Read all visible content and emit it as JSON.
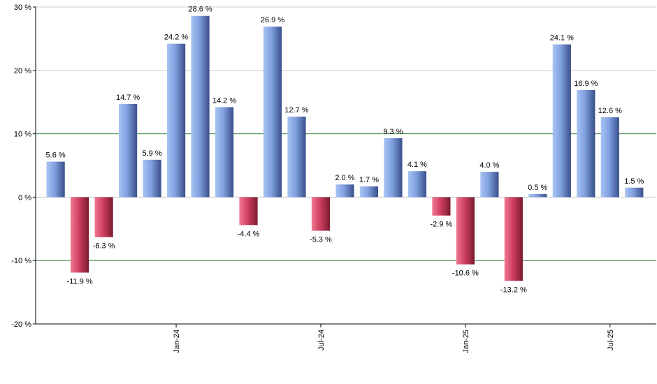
{
  "chart_data": {
    "type": "bar",
    "values": [
      5.6,
      -11.9,
      -6.3,
      14.7,
      5.9,
      24.2,
      28.6,
      14.2,
      -4.4,
      26.9,
      12.7,
      -5.3,
      2.0,
      1.7,
      9.3,
      4.1,
      -2.9,
      -10.6,
      4.0,
      -13.2,
      0.5,
      24.1,
      16.9,
      12.6,
      1.5
    ],
    "data_labels": [
      "5.6 %",
      "-11.9 %",
      "-6.3 %",
      "14.7 %",
      "5.9 %",
      "24.2 %",
      "28.6 %",
      "14.2 %",
      "-4.4 %",
      "26.9 %",
      "12.7 %",
      "-5.3 %",
      "2.0 %",
      "1.7 %",
      "9.3 %",
      "4.1 %",
      "-2.9 %",
      "-10.6 %",
      "4.0 %",
      "-13.2 %",
      "0.5 %",
      "24.1 %",
      "16.9 %",
      "12.6 %",
      "1.5 %"
    ],
    "x_ticks": [
      {
        "index": 5,
        "label": "Jan-24"
      },
      {
        "index": 11,
        "label": "Jul-24"
      },
      {
        "index": 17,
        "label": "Jan-25"
      },
      {
        "index": 23,
        "label": "Jul-25"
      }
    ],
    "y_ticks": [
      {
        "value": 30,
        "label": "30 %"
      },
      {
        "value": 20,
        "label": "20 %"
      },
      {
        "value": 10,
        "label": "10 %"
      },
      {
        "value": 0,
        "label": "0 %"
      },
      {
        "value": -10,
        "label": "-10 %"
      },
      {
        "value": -20,
        "label": "-20 %"
      }
    ],
    "ylim": [
      -20,
      30
    ],
    "title": "",
    "xlabel": "",
    "ylabel": "",
    "grid": true,
    "colors": {
      "positive": "#7f9fdf",
      "negative": "#d04060",
      "grid": "#cccccc",
      "reference_lines": "#2e7d32",
      "axis": "#000000"
    }
  }
}
